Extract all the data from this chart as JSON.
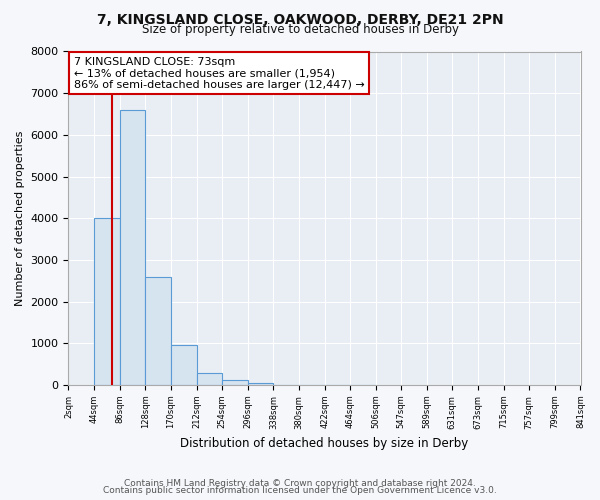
{
  "title_line1": "7, KINGSLAND CLOSE, OAKWOOD, DERBY, DE21 2PN",
  "title_line2": "Size of property relative to detached houses in Derby",
  "xlabel": "Distribution of detached houses by size in Derby",
  "ylabel": "Number of detached properties",
  "bin_edges": [
    2,
    44,
    86,
    128,
    170,
    212,
    254,
    296,
    338,
    380,
    422,
    464,
    506,
    547,
    589,
    631,
    673,
    715,
    757,
    799,
    841
  ],
  "bin_heights": [
    0,
    4000,
    6600,
    2600,
    950,
    290,
    110,
    40,
    10,
    5,
    2,
    1,
    0,
    0,
    0,
    0,
    0,
    0,
    0,
    0
  ],
  "bar_color": "#d6e4f0",
  "bar_edge_color": "#5b9bd5",
  "property_size": 73,
  "vline_color": "#cc0000",
  "annotation_text": "7 KINGSLAND CLOSE: 73sqm\n← 13% of detached houses are smaller (1,954)\n86% of semi-detached houses are larger (12,447) →",
  "annotation_box_facecolor": "#ffffff",
  "annotation_box_edgecolor": "#cc0000",
  "ylim": [
    0,
    8000
  ],
  "yticks": [
    0,
    1000,
    2000,
    3000,
    4000,
    5000,
    6000,
    7000,
    8000
  ],
  "footnote1": "Contains HM Land Registry data © Crown copyright and database right 2024.",
  "footnote2": "Contains public sector information licensed under the Open Government Licence v3.0.",
  "plot_bg_color": "#e8eef4",
  "fig_bg_color": "#f5f7fa",
  "grid_color": "#ffffff",
  "tick_labels": [
    "2sqm",
    "44sqm",
    "86sqm",
    "128sqm",
    "170sqm",
    "212sqm",
    "254sqm",
    "296sqm",
    "338sqm",
    "380sqm",
    "422sqm",
    "464sqm",
    "506sqm",
    "547sqm",
    "589sqm",
    "631sqm",
    "673sqm",
    "715sqm",
    "757sqm",
    "799sqm",
    "841sqm"
  ]
}
